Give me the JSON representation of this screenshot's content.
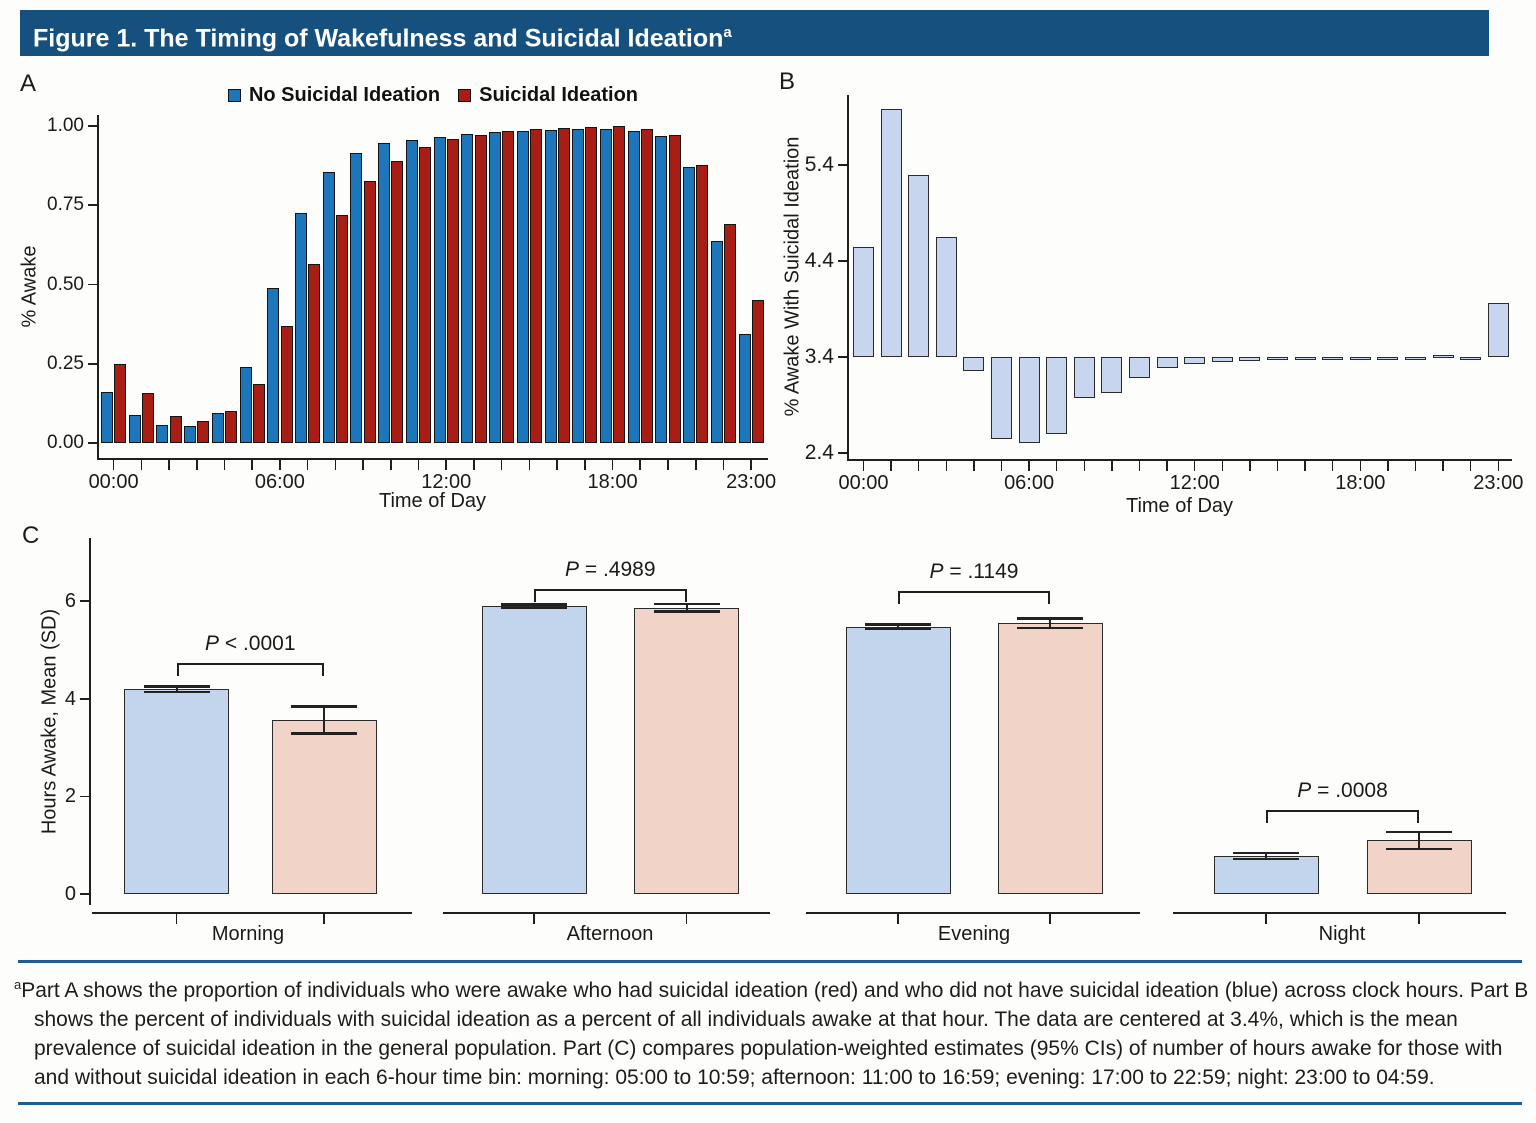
{
  "title": {
    "text": "Figure 1. The Timing of Wakefulness and Suicidal Ideation",
    "superscript": "a"
  },
  "legend": [
    {
      "label": "No Suicidal Ideation",
      "color": "#1b76bc"
    },
    {
      "label": "Suicidal Ideation",
      "color": "#a81e14"
    }
  ],
  "colors": {
    "header_bg": "#15507e",
    "bar_blue": "#1b76bc",
    "bar_red": "#a81e14",
    "bar_light_blue": "#c7d5ee",
    "bar_panel_c_blue": "#c3d4ed",
    "bar_panel_c_pink": "#f2d3c8",
    "axis": "#1f1f1f",
    "rule_blue": "#1d5f95"
  },
  "chart_data": [
    {
      "panel_label": "A",
      "type": "bar",
      "xlabel": "Time of Day",
      "ylabel": "% Awake",
      "ylim": [
        0,
        1.0
      ],
      "yticks": [
        "0.00",
        "0.25",
        "0.50",
        "0.75",
        "1.00"
      ],
      "ytick_values": [
        0,
        0.25,
        0.5,
        0.75,
        1.0
      ],
      "categories": [
        "00:00",
        "01:00",
        "02:00",
        "03:00",
        "04:00",
        "05:00",
        "06:00",
        "07:00",
        "08:00",
        "09:00",
        "10:00",
        "11:00",
        "12:00",
        "13:00",
        "14:00",
        "15:00",
        "16:00",
        "17:00",
        "18:00",
        "19:00",
        "20:00",
        "21:00",
        "22:00",
        "23:00"
      ],
      "xtick_labels": [
        {
          "i": 0,
          "label": "00:00"
        },
        {
          "i": 6,
          "label": "06:00"
        },
        {
          "i": 12,
          "label": "12:00"
        },
        {
          "i": 18,
          "label": "18:00"
        },
        {
          "i": 23,
          "label": "23:00"
        }
      ],
      "series": [
        {
          "name": "No Suicidal Ideation",
          "values": [
            0.16,
            0.088,
            0.056,
            0.053,
            0.095,
            0.24,
            0.49,
            0.725,
            0.855,
            0.915,
            0.945,
            0.955,
            0.965,
            0.975,
            0.98,
            0.985,
            0.988,
            0.99,
            0.99,
            0.985,
            0.968,
            0.872,
            0.638,
            0.345
          ]
        },
        {
          "name": "Suicidal Ideation",
          "values": [
            0.25,
            0.158,
            0.085,
            0.07,
            0.101,
            0.185,
            0.37,
            0.565,
            0.72,
            0.825,
            0.89,
            0.935,
            0.96,
            0.972,
            0.985,
            0.99,
            0.993,
            0.998,
            1.0,
            0.992,
            0.972,
            0.878,
            0.69,
            0.45
          ]
        }
      ]
    },
    {
      "panel_label": "B",
      "type": "bar",
      "xlabel": "Time of Day",
      "ylabel": "% Awake With Suicidal Ideation",
      "baseline": 3.4,
      "ylim": [
        2.3,
        6.05
      ],
      "yticks": [
        "2.4",
        "3.4",
        "4.4",
        "5.4"
      ],
      "ytick_values": [
        2.4,
        3.4,
        4.4,
        5.4
      ],
      "categories": [
        "00:00",
        "01:00",
        "02:00",
        "03:00",
        "04:00",
        "05:00",
        "06:00",
        "07:00",
        "08:00",
        "09:00",
        "10:00",
        "11:00",
        "12:00",
        "13:00",
        "14:00",
        "15:00",
        "16:00",
        "17:00",
        "18:00",
        "19:00",
        "20:00",
        "21:00",
        "22:00",
        "23:00"
      ],
      "xtick_labels": [
        {
          "i": 0,
          "label": "00:00"
        },
        {
          "i": 6,
          "label": "06:00"
        },
        {
          "i": 12,
          "label": "12:00"
        },
        {
          "i": 18,
          "label": "18:00"
        },
        {
          "i": 23,
          "label": "23:00"
        }
      ],
      "values": [
        4.55,
        5.98,
        5.3,
        4.65,
        3.25,
        2.55,
        2.5,
        2.6,
        2.97,
        3.03,
        3.18,
        3.29,
        3.33,
        3.35,
        3.36,
        3.375,
        3.375,
        3.375,
        3.375,
        3.375,
        3.375,
        3.42,
        3.375,
        3.96
      ]
    },
    {
      "panel_label": "C",
      "type": "bar",
      "ylabel": "Hours Awake, Mean (SD)",
      "ylim": [
        0,
        7
      ],
      "yticks": [
        "0",
        "2",
        "4",
        "6"
      ],
      "ytick_values": [
        0,
        2,
        4,
        6
      ],
      "categories": [
        "Morning",
        "Afternoon",
        "Evening",
        "Night"
      ],
      "series": [
        {
          "name": "No Suicidal Ideation",
          "means": [
            4.2,
            5.9,
            5.48,
            0.78
          ],
          "ci": [
            0.06,
            0.04,
            0.05,
            0.06
          ]
        },
        {
          "name": "Suicidal Ideation",
          "means": [
            3.57,
            5.87,
            5.55,
            1.1
          ],
          "ci": [
            0.28,
            0.08,
            0.1,
            0.17
          ]
        }
      ],
      "p_values": [
        "P < .0001",
        "P = .4989",
        "P = .1149",
        "P = .0008"
      ],
      "bracket_heights": [
        4.73,
        6.25,
        6.2,
        1.72
      ]
    }
  ],
  "footnote": {
    "superscript": "a",
    "text": "Part A shows the proportion of individuals who were awake who had suicidal ideation (red) and who did not have suicidal ideation (blue) across clock hours. Part B shows the percent of individuals with suicidal ideation as a percent of all individuals awake at that hour. The data are centered at 3.4%, which is the mean prevalence of suicidal ideation in the general population. Part (C) compares population-weighted estimates (95% CIs) of  number of hours awake for those with and without suicidal ideation in each 6-hour time bin: morning: 05:00 to 10:59; afternoon: 11:00 to 16:59; evening: 17:00 to 22:59; night: 23:00 to 04:59."
  }
}
